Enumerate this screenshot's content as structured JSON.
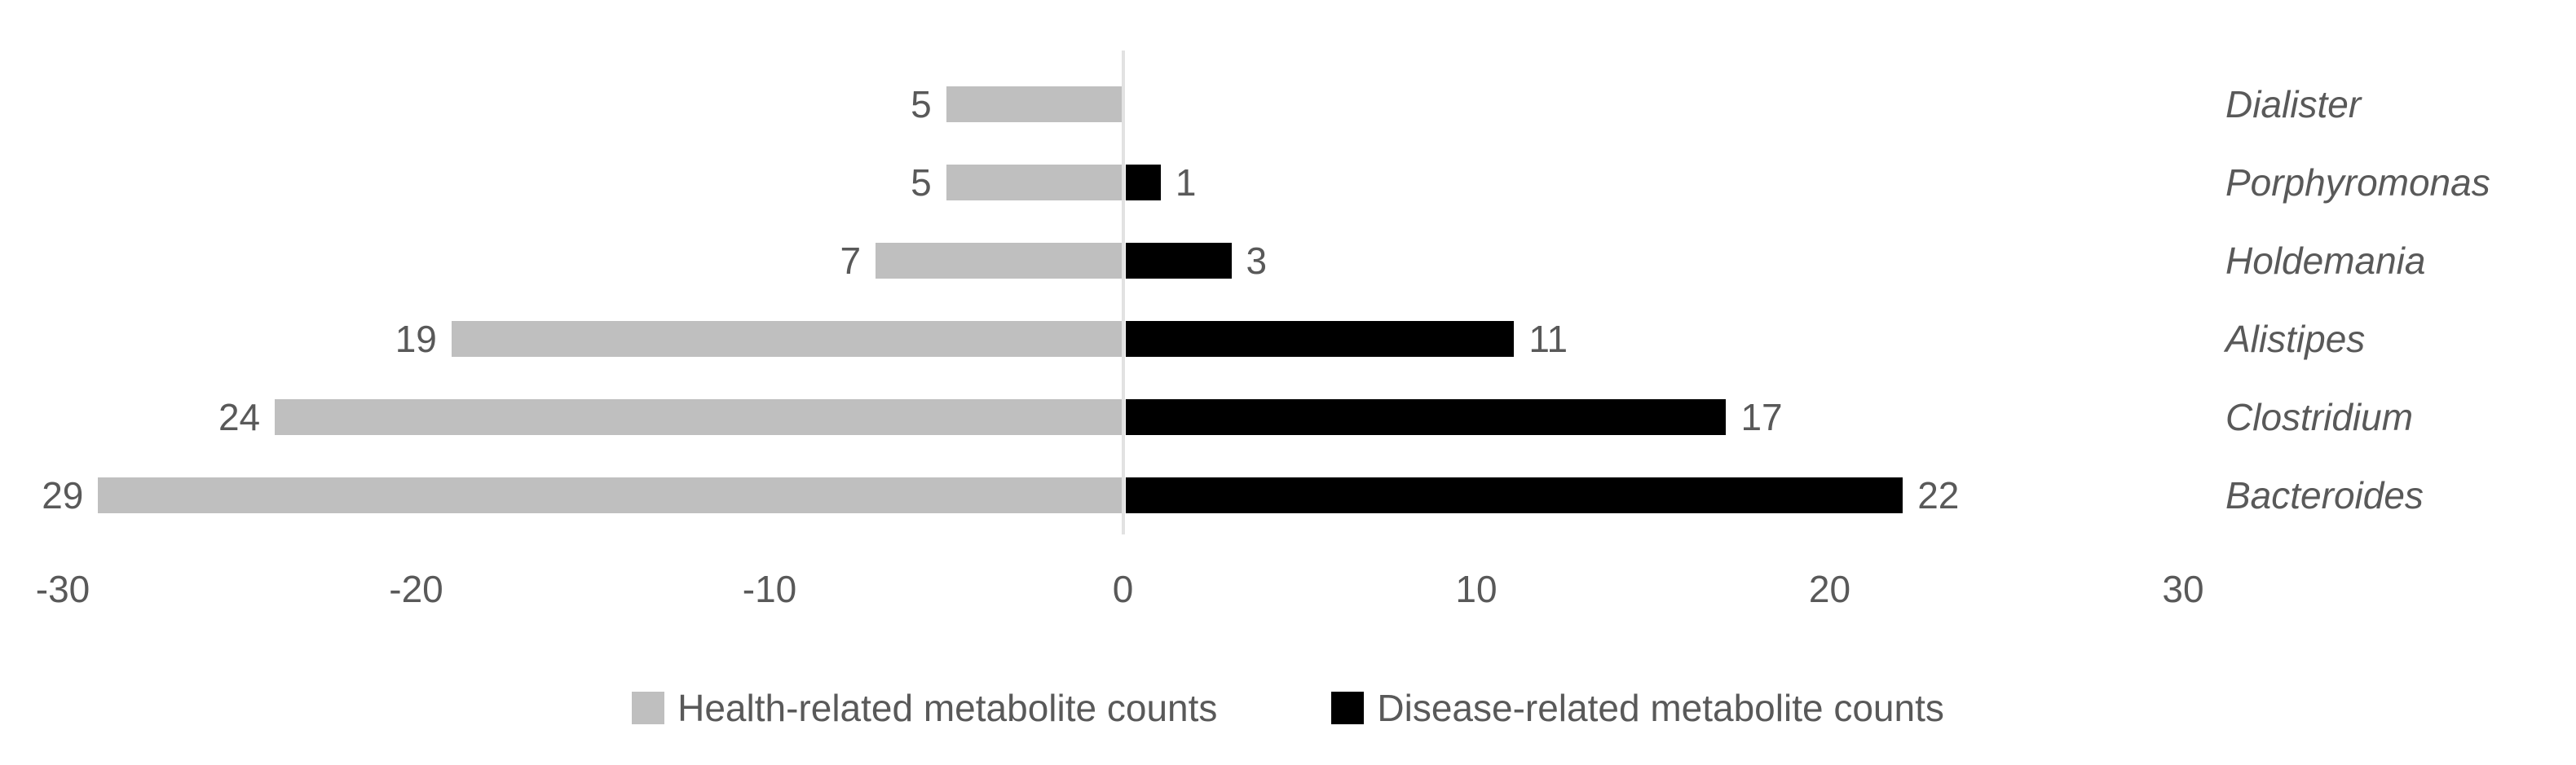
{
  "chart_data": {
    "type": "bar",
    "variant": "horizontal-diverging-tornado",
    "title": "",
    "categories": [
      "Dialister",
      "Porphyromonas",
      "Holdemania",
      "Alistipes",
      "Clostridium",
      "Bacteroides"
    ],
    "series": [
      {
        "name": "Health-related metabolite counts",
        "color": "#bfbfbf",
        "direction": "left",
        "values": [
          5,
          5,
          7,
          19,
          24,
          29
        ],
        "data_labels": [
          "5",
          "5",
          "7",
          "19",
          "24",
          "29"
        ]
      },
      {
        "name": "Disease-related metabolite counts",
        "color": "#000000",
        "direction": "right",
        "values": [
          null,
          1,
          3,
          11,
          17,
          22
        ],
        "data_labels": [
          null,
          "1",
          "3",
          "11",
          "17",
          "22"
        ]
      }
    ],
    "xlim": [
      -30,
      30
    ],
    "x_ticks": [
      -30,
      -20,
      -10,
      0,
      10,
      20,
      30
    ],
    "x_tick_labels": [
      "-30",
      "-20",
      "-10",
      "0",
      "10",
      "20",
      "30"
    ],
    "grid": "zero-axis-only",
    "legend_position": "bottom-center",
    "category_label_position": "right-outside",
    "colors": {
      "background": "#ffffff",
      "text": "#595959",
      "zero_line": "#e2e2e2"
    }
  }
}
